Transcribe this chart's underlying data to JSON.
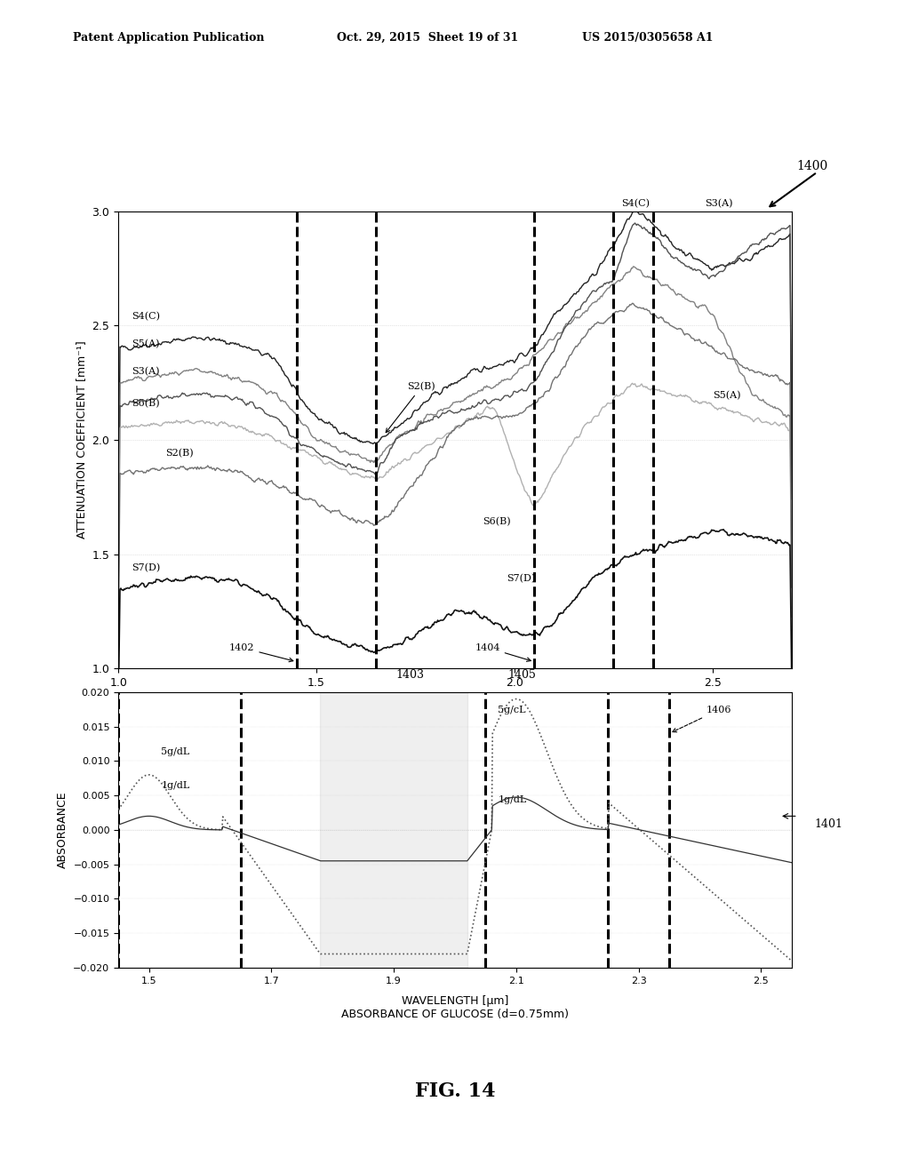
{
  "header_left": "Patent Application Publication",
  "header_mid": "Oct. 29, 2015  Sheet 19 of 31",
  "header_right": "US 2015/0305658 A1",
  "fig_label": "FIG. 14",
  "ref_number": "1400",
  "ref_number2": "1401",
  "top_plot": {
    "ylabel": "ATTENUATION COEFFICIENT [mm⁻¹]",
    "xlim": [
      1.0,
      2.7
    ],
    "ylim": [
      1.0,
      3.0
    ],
    "yticks": [
      1.0,
      1.5,
      2.0,
      2.5,
      3.0
    ],
    "xticks": [
      1.0,
      1.5,
      2.0,
      2.5
    ],
    "dashed_lines_x": [
      1.45,
      1.65,
      2.05,
      2.25,
      2.35
    ]
  },
  "bottom_plot": {
    "xlabel": "WAVELENGTH [μm]\nABSORBANCE OF GLUCOSE (d=0.75mm)",
    "ylabel": "ABSORBANCE",
    "xlim": [
      1.45,
      2.55
    ],
    "ylim": [
      -0.02,
      0.02
    ],
    "yticks": [
      -0.02,
      -0.015,
      -0.01,
      -0.005,
      0,
      0.005,
      0.01,
      0.015,
      0.02
    ],
    "xtick_vals": [
      1.5,
      1.7,
      1.9,
      2.1,
      2.3,
      2.5
    ],
    "xtick_labels": [
      "1.5",
      "1.7",
      "1.9",
      "2.1",
      "2.3",
      "2.5"
    ],
    "dashed_lines_x": [
      1.45,
      1.65,
      2.05,
      2.25,
      2.35
    ]
  },
  "background_color": "#ffffff",
  "grid_color": "#cccccc"
}
